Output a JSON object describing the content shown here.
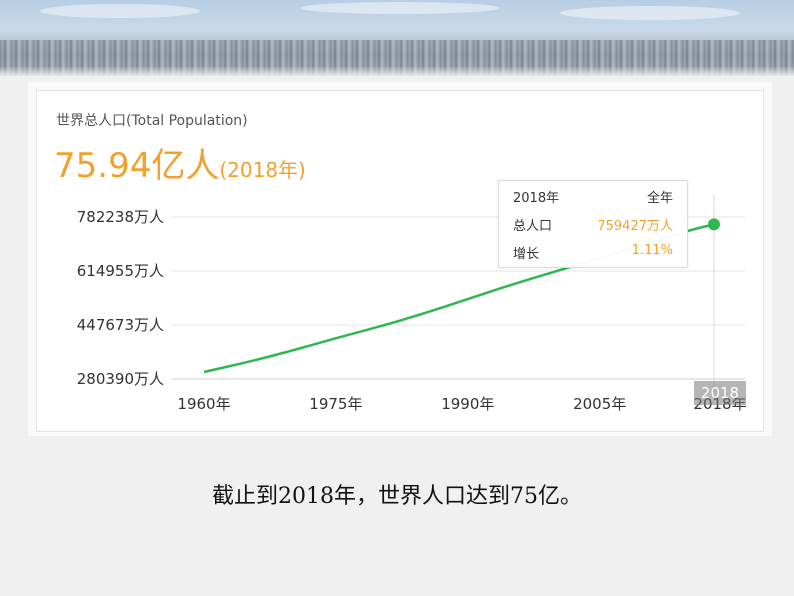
{
  "header": {
    "title": "世界总人口(Total Population)",
    "big_value": "75.94亿人",
    "big_year": "(2018年)"
  },
  "tooltip": {
    "year": "2018年",
    "period": "全年",
    "pop_label": "总人口",
    "pop_value": "759427万人",
    "growth_label": "增长",
    "growth_value": "1.11%"
  },
  "cursor_label": "2018",
  "caption": "截止到2018年，世界人口达到75亿。",
  "colors": {
    "line": "#2db84d",
    "accent": "#f3a12d",
    "grid": "#e5e5e5"
  },
  "chart_data": {
    "type": "line",
    "title": "世界总人口(Total Population)",
    "xlabel": "",
    "ylabel": "",
    "x_ticks": [
      "1960年",
      "1975年",
      "1990年",
      "2005年",
      "2018年"
    ],
    "y_ticks": [
      "280390万人",
      "447673万人",
      "614955万人",
      "782238万人"
    ],
    "y_tick_values": [
      280390,
      447673,
      614955,
      782238
    ],
    "xlim": [
      1960,
      2018
    ],
    "ylim": [
      280390,
      782238
    ],
    "grid": true,
    "series": [
      {
        "values": [
          {
            "x": 1960,
            "y": 302000
          },
          {
            "x": 1965,
            "y": 333000
          },
          {
            "x": 1970,
            "y": 368000
          },
          {
            "x": 1975,
            "y": 407000
          },
          {
            "x": 1980,
            "y": 443000
          },
          {
            "x": 1985,
            "y": 483000
          },
          {
            "x": 1990,
            "y": 528000
          },
          {
            "x": 1995,
            "y": 573000
          },
          {
            "x": 2000,
            "y": 614000
          },
          {
            "x": 2005,
            "y": 654000
          },
          {
            "x": 2010,
            "y": 695000
          },
          {
            "x": 2015,
            "y": 740000
          },
          {
            "x": 2018,
            "y": 759427
          }
        ]
      }
    ],
    "highlight": {
      "x": 2018,
      "y": 759427
    }
  }
}
